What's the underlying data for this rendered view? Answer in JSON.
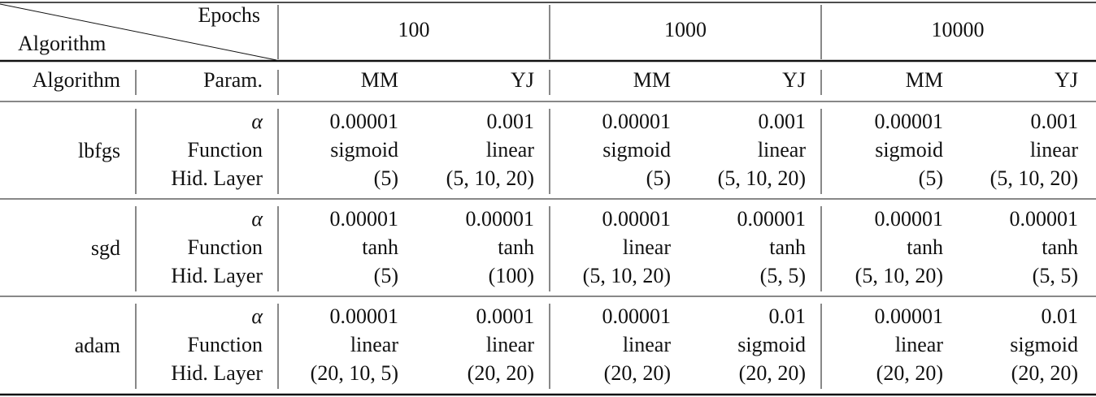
{
  "header": {
    "diagonal_top": "Epochs",
    "diagonal_bottom": "Algorithm",
    "epochs": [
      "100",
      "1000",
      "10000"
    ]
  },
  "subheader": [
    "Algorithm",
    "Param.",
    "MM",
    "YJ",
    "MM",
    "YJ",
    "MM",
    "YJ"
  ],
  "rows": [
    {
      "algorithm": "lbfgs",
      "params": [
        "α",
        "Function",
        "Hid. Layer"
      ],
      "cells": [
        [
          "0.00001",
          "sigmoid",
          "(5)"
        ],
        [
          "0.001",
          "linear",
          "(5, 10, 20)"
        ],
        [
          "0.00001",
          "sigmoid",
          "(5)"
        ],
        [
          "0.001",
          "linear",
          "(5, 10, 20)"
        ],
        [
          "0.00001",
          "sigmoid",
          "(5)"
        ],
        [
          "0.001",
          "linear",
          "(5, 10, 20)"
        ]
      ]
    },
    {
      "algorithm": "sgd",
      "params": [
        "α",
        "Function",
        "Hid. Layer"
      ],
      "cells": [
        [
          "0.00001",
          "tanh",
          "(5)"
        ],
        [
          "0.00001",
          "tanh",
          "(100)"
        ],
        [
          "0.00001",
          "linear",
          "(5, 10, 20)"
        ],
        [
          "0.00001",
          "tanh",
          "(5, 5)"
        ],
        [
          "0.00001",
          "tanh",
          "(5, 10, 20)"
        ],
        [
          "0.00001",
          "tanh",
          "(5, 5)"
        ]
      ]
    },
    {
      "algorithm": "adam",
      "params": [
        "α",
        "Function",
        "Hid. Layer"
      ],
      "cells": [
        [
          "0.00001",
          "linear",
          "(20, 10, 5)"
        ],
        [
          "0.0001",
          "linear",
          "(20, 20)"
        ],
        [
          "0.00001",
          "linear",
          "(20, 20)"
        ],
        [
          "0.01",
          "sigmoid",
          "(20, 20)"
        ],
        [
          "0.00001",
          "linear",
          "(20, 20)"
        ],
        [
          "0.01",
          "sigmoid",
          "(20, 20)"
        ]
      ]
    }
  ]
}
